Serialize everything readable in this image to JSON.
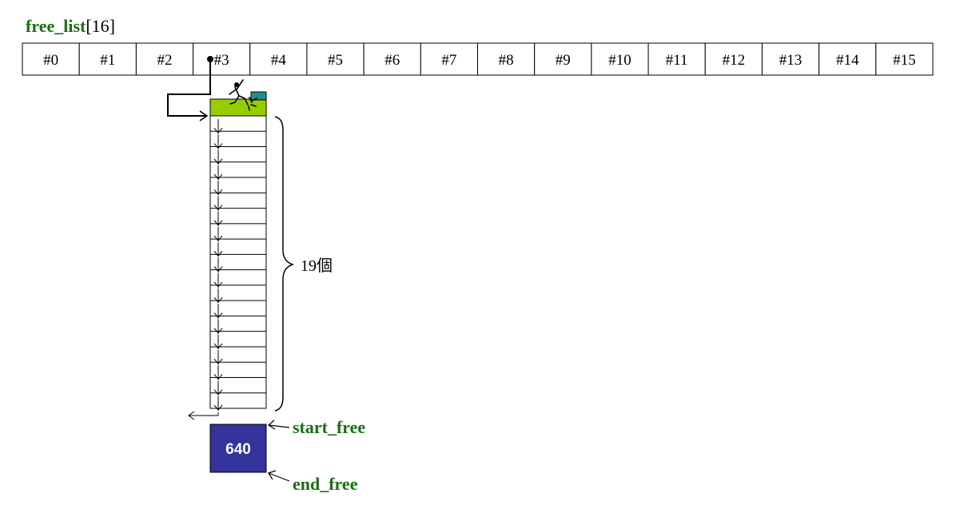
{
  "free_list": {
    "name": "free_list",
    "size_suffix": "[16]",
    "slots": [
      "#0",
      "#1",
      "#2",
      "#3",
      "#4",
      "#5",
      "#6",
      "#7",
      "#8",
      "#9",
      "#10",
      "#11",
      "#12",
      "#13",
      "#14",
      "#15"
    ],
    "active_slot_index": 3
  },
  "chunks": {
    "count": 19,
    "brace_label": "19個"
  },
  "pool": {
    "remaining_label": "640",
    "start_label": "start_free",
    "end_label": "end_free"
  },
  "colors": {
    "label_green": "#1a6e12",
    "allocated_block": "#99cc00",
    "allocated_tab": "#1f8f8f",
    "pool_fill": "#333399",
    "line": "#000000"
  },
  "icons": {
    "allocated_marker": "running-figure-icon"
  }
}
